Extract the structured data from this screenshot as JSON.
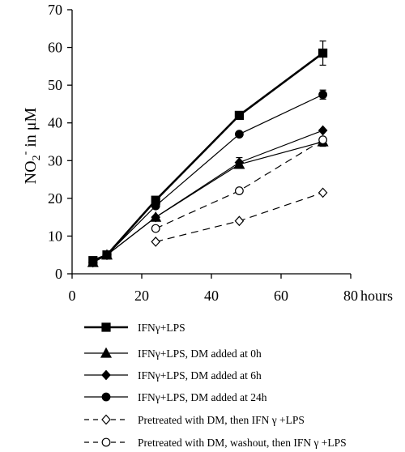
{
  "chart_data": {
    "type": "line",
    "title": "",
    "xlabel_suffix": "hours",
    "ylabel": {
      "base": "NO",
      "sub": "2",
      "sup": "-",
      "rest": " in μM"
    },
    "xlim": [
      0,
      80
    ],
    "ylim": [
      0,
      70
    ],
    "x_ticks": [
      "0",
      "20",
      "40",
      "60",
      "80"
    ],
    "y_ticks": [
      "0",
      "10",
      "20",
      "30",
      "40",
      "50",
      "60",
      "70"
    ],
    "grid": false,
    "legend_position": "bottom",
    "series": [
      {
        "name": "IFNγ+LPS",
        "marker": "square",
        "filled": true,
        "dash": "solid",
        "width": 2.6,
        "x": [
          6,
          10,
          24,
          48,
          72
        ],
        "y": [
          3.5,
          5,
          19.5,
          42,
          58.5
        ],
        "err": [
          0,
          0,
          0,
          0,
          3.2
        ]
      },
      {
        "name": "IFNγ+LPS, DM added at 0h",
        "marker": "triangle",
        "filled": true,
        "dash": "solid",
        "width": 1.2,
        "x": [
          6,
          10,
          24,
          48,
          72
        ],
        "y": [
          3,
          5,
          15,
          29,
          35
        ],
        "err": [
          0,
          0,
          0,
          0,
          1.2
        ]
      },
      {
        "name": "IFNγ+LPS, DM added at 6h",
        "marker": "diamond",
        "filled": true,
        "dash": "solid",
        "width": 1.2,
        "x": [
          6,
          10,
          24,
          48,
          72
        ],
        "y": [
          3,
          5,
          15,
          29.5,
          38
        ],
        "err": [
          0,
          0,
          0,
          1.3,
          0
        ]
      },
      {
        "name": "IFNγ+LPS, DM added at 24h",
        "marker": "circle",
        "filled": true,
        "dash": "solid",
        "width": 1.2,
        "x": [
          6,
          10,
          24,
          48,
          72
        ],
        "y": [
          3,
          5,
          18,
          37,
          47.5
        ],
        "err": [
          0,
          0,
          0,
          0,
          1.2
        ]
      },
      {
        "name": "Pretreated with DM, then IFN γ +LPS",
        "marker": "diamond",
        "filled": false,
        "dash": "dashed",
        "width": 1.2,
        "x": [
          24,
          48,
          72
        ],
        "y": [
          8.5,
          14,
          21.5
        ],
        "err": [
          0,
          0,
          0
        ]
      },
      {
        "name": "Pretreated with DM, washout, then IFN γ +LPS",
        "marker": "circle",
        "filled": false,
        "dash": "dashed",
        "width": 1.2,
        "x": [
          24,
          48,
          72
        ],
        "y": [
          12,
          22,
          35.5
        ],
        "err": [
          0,
          0,
          0
        ]
      }
    ]
  }
}
